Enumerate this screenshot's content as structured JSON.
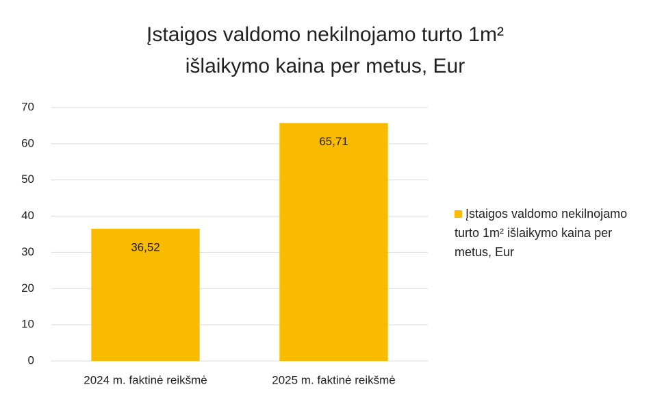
{
  "chart_data": {
    "type": "bar",
    "title": "Įstaigos valdomo nekilnojamo turto 1m² išlaikymo kaina per metus, Eur",
    "categories": [
      "2024 m. faktinė reikšmė",
      "2025 m. faktinė reikšmė"
    ],
    "series": [
      {
        "name": "Įstaigos valdomo nekilnojamo turto 1m² išlaikymo kaina per metus, Eur",
        "color": "#f9bb00",
        "values": [
          36.52,
          65.71
        ],
        "value_labels": [
          "36,52",
          "65,71"
        ]
      }
    ],
    "ylim": [
      0,
      70
    ],
    "yticks": [
      0,
      10,
      20,
      30,
      40,
      50,
      60,
      70
    ],
    "grid": true,
    "legend": "right"
  }
}
